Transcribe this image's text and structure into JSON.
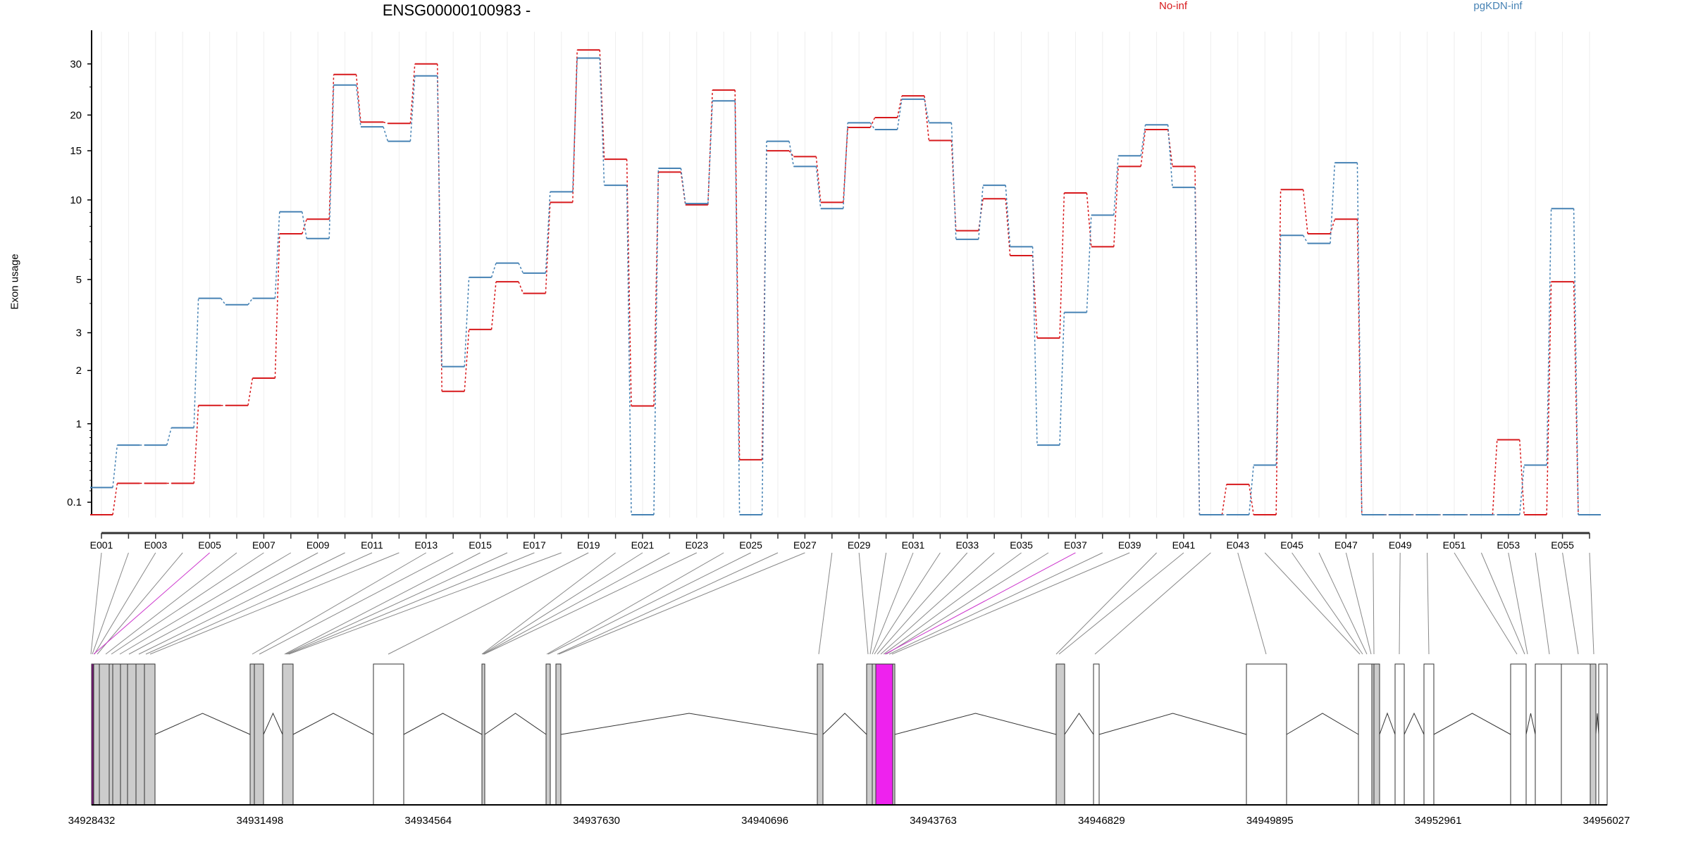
{
  "chart_data": {
    "type": "line",
    "title": "ENSG00000100983 -",
    "ylabel": "Exon usage",
    "xlabel": "",
    "y_scale": "log10(y+1)",
    "ylim": [
      0,
      36
    ],
    "y_ticks": [
      0.1,
      1,
      2,
      3,
      5,
      10,
      15,
      20,
      30
    ],
    "y_tick_labels": [
      "0.1",
      "1",
      "2",
      "3",
      "5",
      "10",
      "15",
      "20",
      "30"
    ],
    "n_exons": 56,
    "exon_labels_shown": [
      "E001",
      "E003",
      "E005",
      "E007",
      "E009",
      "E011",
      "E013",
      "E015",
      "E017",
      "E019",
      "E021",
      "E023",
      "E025",
      "E027",
      "E029",
      "E031",
      "E033",
      "E035",
      "E037",
      "E039",
      "E041",
      "E043",
      "E045",
      "E047",
      "E049",
      "E051",
      "E053",
      "E055"
    ],
    "highlighted_exons": [
      "E005",
      "E037"
    ],
    "legend": [
      {
        "name": "No-inf",
        "color": "#d7191c",
        "position": "top-center"
      },
      {
        "name": "pgKDN-inf",
        "color": "#4682b4",
        "position": "top-right"
      }
    ],
    "series": [
      {
        "name": "No-inf",
        "color": "#d7191c",
        "values": [
          0,
          0.27,
          0.27,
          0.27,
          1.3,
          1.3,
          1.83,
          7.5,
          8.5,
          27.6,
          18.9,
          18.7,
          30.0,
          1.56,
          3.1,
          4.9,
          4.4,
          9.8,
          33.5,
          14.0,
          1.29,
          12.6,
          9.6,
          24.4,
          0.52,
          15.0,
          14.3,
          9.8,
          18.1,
          19.6,
          23.3,
          16.3,
          7.7,
          10.1,
          6.2,
          2.84,
          10.6,
          6.7,
          13.2,
          17.8,
          13.2,
          0,
          0.26,
          0,
          10.9,
          7.5,
          8.5,
          0,
          0,
          0,
          0,
          0,
          0.77,
          0,
          4.9,
          0
        ]
      },
      {
        "name": "pgKDN-inf",
        "color": "#4682b4",
        "values": [
          0.23,
          0.7,
          0.7,
          0.94,
          4.2,
          3.95,
          4.2,
          9.05,
          7.2,
          25.4,
          18.2,
          16.2,
          27.3,
          2.09,
          5.1,
          5.8,
          5.3,
          10.7,
          31.4,
          11.3,
          0,
          13.0,
          9.7,
          22.4,
          0,
          16.2,
          13.2,
          9.3,
          18.8,
          17.8,
          22.7,
          18.8,
          7.15,
          11.3,
          6.7,
          0.7,
          3.67,
          8.8,
          14.4,
          18.5,
          11.1,
          0,
          0,
          0.46,
          7.4,
          6.9,
          13.6,
          0,
          0,
          0,
          0,
          0,
          0,
          0.46,
          9.3,
          0
        ]
      }
    ],
    "genomic_axis": {
      "tick_labels": [
        "34928432",
        "34931498",
        "34934564",
        "34937630",
        "34940696",
        "34943763",
        "34946829",
        "34949895",
        "34952961",
        "34956027"
      ]
    },
    "grid": "vertical"
  }
}
